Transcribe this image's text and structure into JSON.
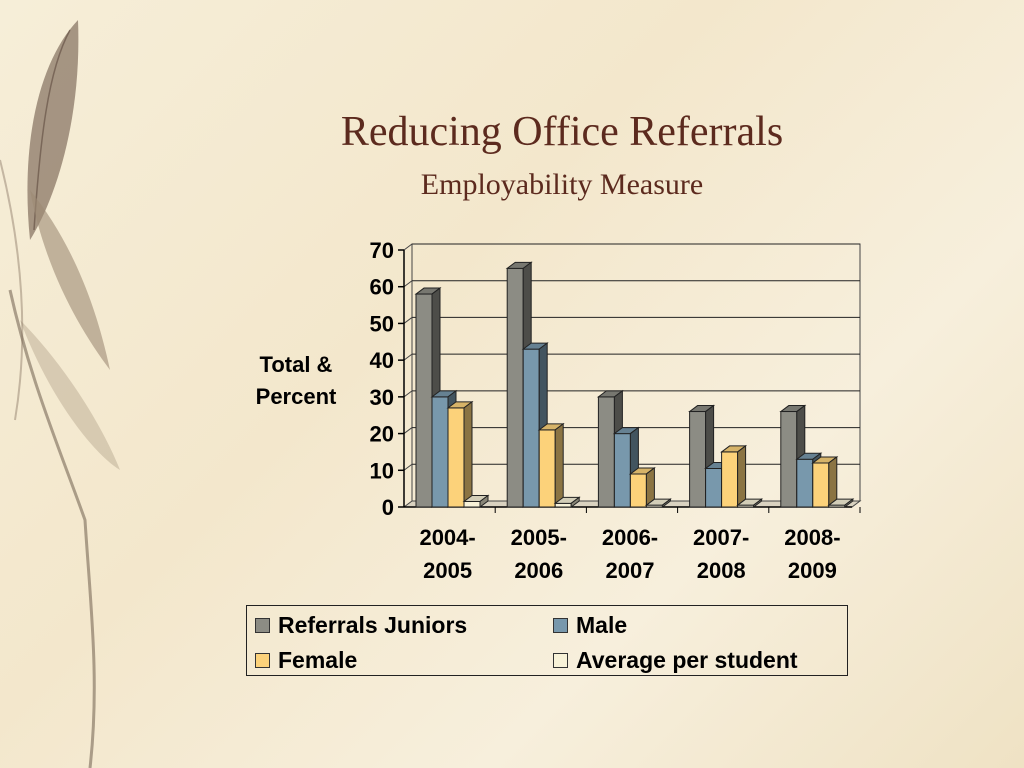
{
  "slide": {
    "title": "Reducing Office Referrals",
    "subtitle": "Employability Measure"
  },
  "chart_data": {
    "type": "bar",
    "title": "",
    "xlabel": "",
    "ylabel_lines": [
      "Total &",
      "Percent"
    ],
    "categories": [
      "2004-2005",
      "2005-2006",
      "2006-2007",
      "2007-2008",
      "2008-2009"
    ],
    "category_lines": [
      [
        "2004-",
        "2005"
      ],
      [
        "2005-",
        "2006"
      ],
      [
        "2006-",
        "2007"
      ],
      [
        "2007-",
        "2008"
      ],
      [
        "2008-",
        "2009"
      ]
    ],
    "ylim": [
      0,
      70
    ],
    "yticks": [
      0,
      10,
      20,
      30,
      40,
      50,
      60,
      70
    ],
    "grid": true,
    "legend_position": "bottom",
    "series": [
      {
        "name": "Referrals Juniors",
        "color": "#8c8c84",
        "values": [
          58,
          65,
          30,
          26,
          26
        ]
      },
      {
        "name": "Male",
        "color": "#7898ac",
        "values": [
          30,
          43,
          20,
          10.5,
          13
        ]
      },
      {
        "name": "Female",
        "color": "#fcd27a",
        "values": [
          27,
          21,
          9,
          15,
          12
        ]
      },
      {
        "name": "Average per student",
        "color": "#f8f2d8",
        "values": [
          1.5,
          1,
          0.5,
          0.5,
          0.5
        ]
      }
    ]
  }
}
